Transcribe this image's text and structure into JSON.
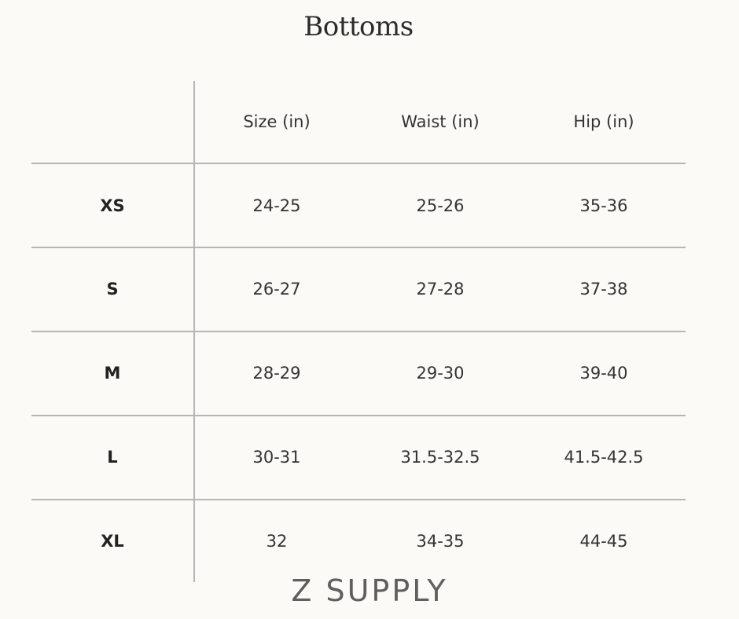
{
  "title": "Bottoms",
  "table": {
    "headers": [
      "Size (in)",
      "Waist (in)",
      "Hip (in)"
    ],
    "rows": [
      {
        "label": "XS",
        "values": [
          "24-25",
          "25-26",
          "35-36"
        ]
      },
      {
        "label": "S",
        "values": [
          "26-27",
          "27-28",
          "37-38"
        ]
      },
      {
        "label": "M",
        "values": [
          "28-29",
          "29-30",
          "39-40"
        ]
      },
      {
        "label": "L",
        "values": [
          "30-31",
          "31.5-32.5",
          "41.5-42.5"
        ]
      },
      {
        "label": "XL",
        "values": [
          "32",
          "34-35",
          "44-45"
        ]
      }
    ]
  },
  "logo": "Z SUPPLY"
}
